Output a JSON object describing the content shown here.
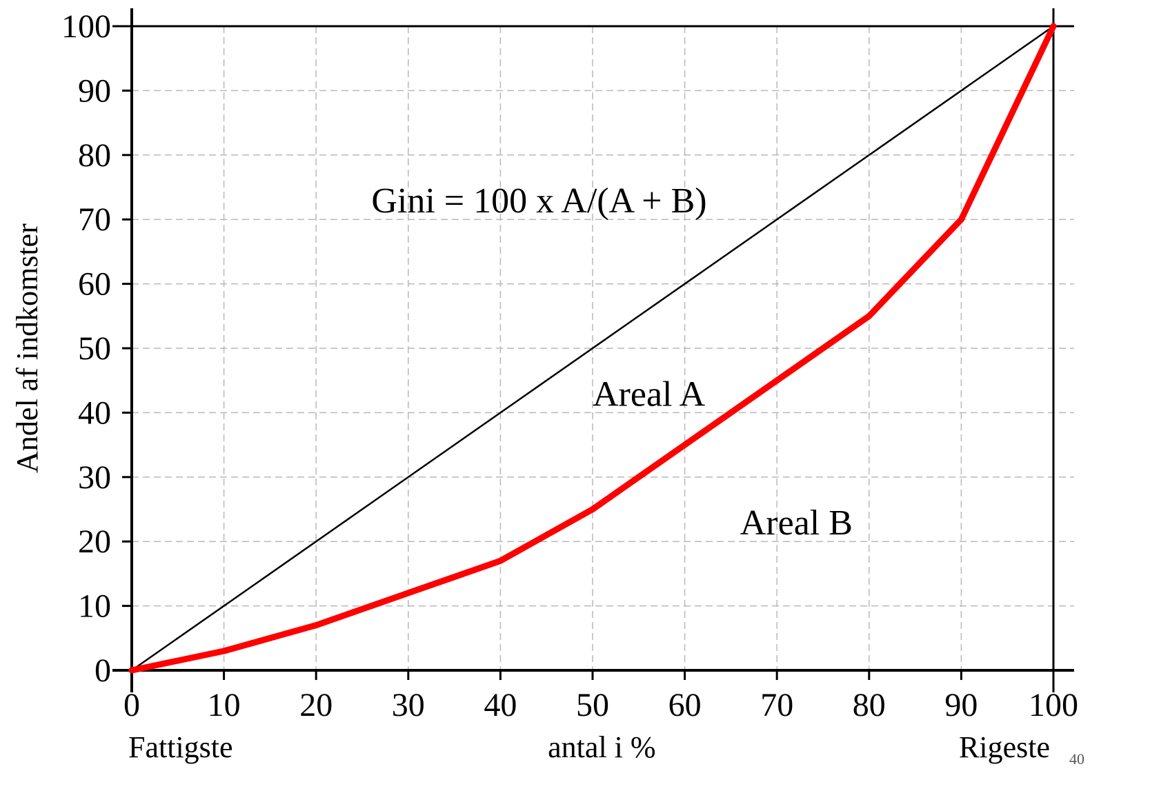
{
  "chart_data": {
    "type": "line",
    "xlabel": "antal i %",
    "ylabel": "Andel af indkomster",
    "xlim": [
      0,
      100
    ],
    "ylim": [
      0,
      100
    ],
    "x_ticks": [
      "0",
      "10",
      "20",
      "30",
      "40",
      "50",
      "60",
      "70",
      "80",
      "90",
      "100"
    ],
    "y_ticks": [
      "0",
      "10",
      "20",
      "30",
      "40",
      "50",
      "60",
      "70",
      "80",
      "90",
      "100"
    ],
    "x_end_labels": {
      "left": "Fattigste",
      "right": "Rigeste"
    },
    "grid": true,
    "series": [
      {
        "color": "#000000",
        "x": [
          0,
          100
        ],
        "y": [
          0,
          100
        ]
      },
      {
        "color": "#ff0000",
        "x": [
          0,
          10,
          20,
          30,
          40,
          50,
          60,
          70,
          80,
          90,
          100
        ],
        "y": [
          0,
          3,
          7,
          12,
          17,
          25,
          35,
          45,
          55,
          70,
          100
        ]
      }
    ],
    "annotations": [
      {
        "text": "Gini = 100 x A/(A + B)",
        "x": 26,
        "y": 73
      },
      {
        "text": "Areal A",
        "x": 50,
        "y": 43
      },
      {
        "text": "Areal B",
        "x": 66,
        "y": 23
      }
    ]
  },
  "page_number": "40"
}
